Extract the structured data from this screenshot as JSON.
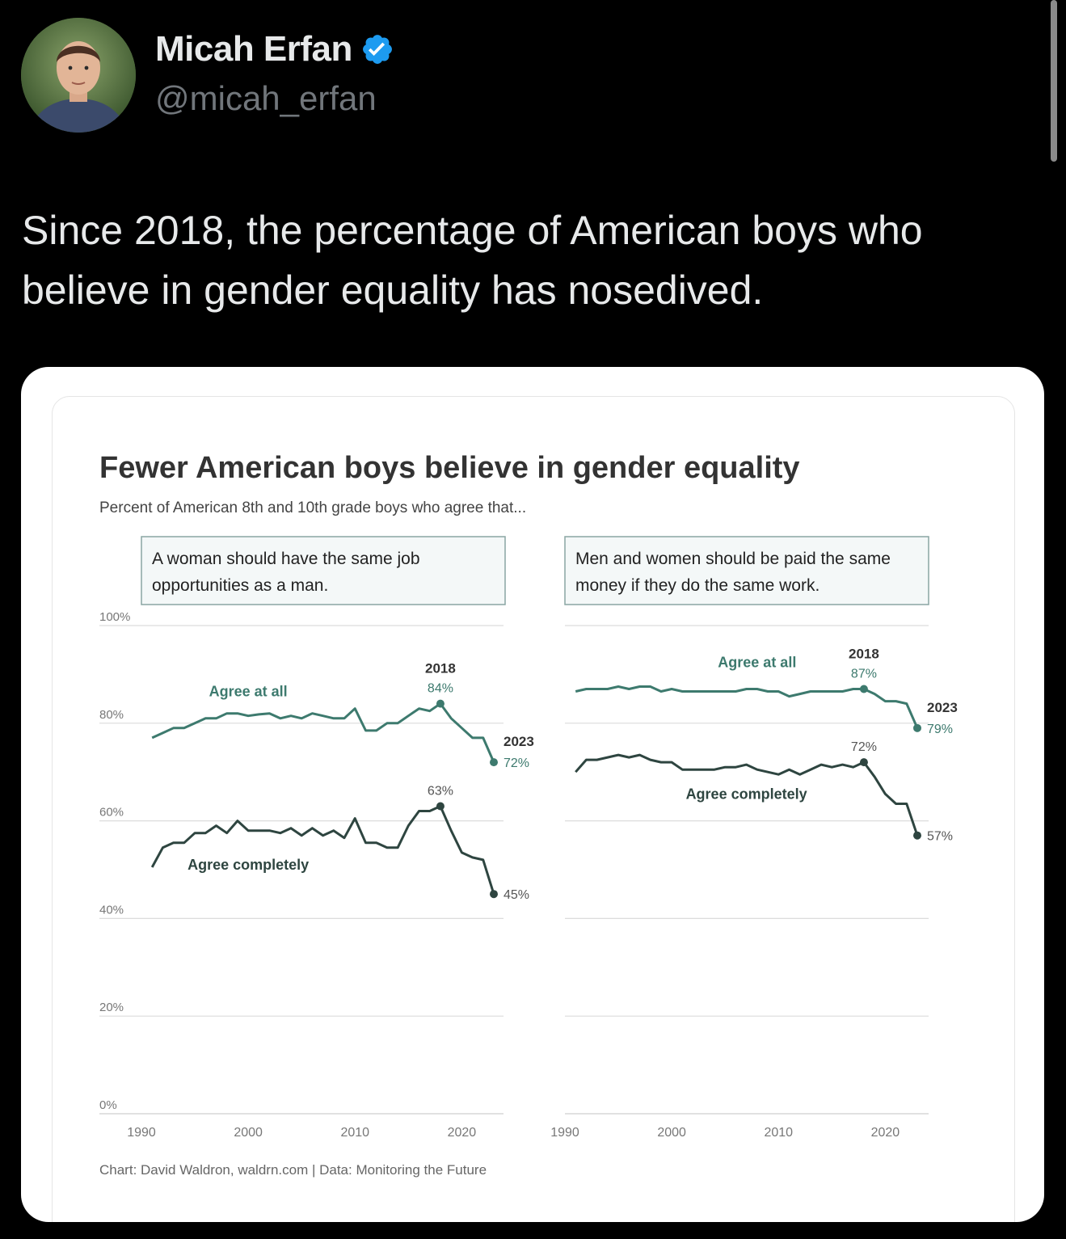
{
  "author": {
    "name": "Micah Erfan",
    "handle": "@micah_erfan",
    "verified_icon": "verified-badge-icon",
    "verified_color": "#1d9bf0"
  },
  "tweet": {
    "text": "Since 2018, the percentage of American boys who believe in gender equality has nosedived."
  },
  "chart_data": {
    "type": "line",
    "title": "Fewer American boys believe in gender equality",
    "subtitle": "Percent of American 8th and 10th grade boys who agree that...",
    "source": "Chart: David Waldron, waldrn.com | Data: Monitoring the Future",
    "ylim": [
      0,
      100
    ],
    "y_ticks": [
      "100%",
      "80%",
      "60%",
      "40%",
      "20%",
      "0%"
    ],
    "xlim": [
      1990,
      2023
    ],
    "x_ticks": [
      "1990",
      "2000",
      "2010",
      "2020"
    ],
    "colors": {
      "agree_at_all": "#3d7a6e",
      "agree_completely": "#2e4540"
    },
    "panels": [
      {
        "question": "A woman should have the same job opportunities as a man.",
        "series": [
          {
            "name": "Agree at all",
            "x": [
              1991,
              1992,
              1993,
              1994,
              1995,
              1996,
              1997,
              1998,
              1999,
              2000,
              2001,
              2002,
              2003,
              2004,
              2005,
              2006,
              2007,
              2008,
              2009,
              2010,
              2011,
              2012,
              2013,
              2014,
              2015,
              2016,
              2017,
              2018,
              2019,
              2020,
              2021,
              2022,
              2023
            ],
            "y": [
              77,
              78,
              79,
              79,
              80,
              81,
              81,
              82,
              82,
              81.5,
              81.8,
              82,
              81,
              81.5,
              81,
              82,
              81.5,
              81,
              81,
              83,
              78.5,
              78.5,
              80,
              80,
              81.5,
              83,
              82.5,
              84,
              81,
              79,
              77,
              77,
              72
            ]
          },
          {
            "name": "Agree completely",
            "x": [
              1991,
              1992,
              1993,
              1994,
              1995,
              1996,
              1997,
              1998,
              1999,
              2000,
              2001,
              2002,
              2003,
              2004,
              2005,
              2006,
              2007,
              2008,
              2009,
              2010,
              2011,
              2012,
              2013,
              2014,
              2015,
              2016,
              2017,
              2018,
              2019,
              2020,
              2021,
              2022,
              2023
            ],
            "y": [
              50.5,
              54.5,
              55.5,
              55.5,
              57.5,
              57.5,
              59,
              57.5,
              60,
              58,
              58,
              58,
              57.5,
              58.5,
              57,
              58.5,
              57,
              58,
              56.5,
              60.5,
              55.5,
              55.5,
              54.5,
              54.5,
              59,
              62,
              62,
              63,
              58,
              53.5,
              52.5,
              52,
              45
            ]
          }
        ],
        "labels": {
          "agree_at_all": "Agree at all",
          "agree_completely": "Agree completely",
          "peak_year": "2018",
          "peak_at_all": "84%",
          "peak_completely": "63%",
          "end_year": "2023",
          "end_at_all": "72%",
          "end_completely": "45%"
        }
      },
      {
        "question": "Men and women should be paid the same money if they do the same work.",
        "series": [
          {
            "name": "Agree at all",
            "x": [
              1991,
              1992,
              1993,
              1994,
              1995,
              1996,
              1997,
              1998,
              1999,
              2000,
              2001,
              2002,
              2003,
              2004,
              2005,
              2006,
              2007,
              2008,
              2009,
              2010,
              2011,
              2012,
              2013,
              2014,
              2015,
              2016,
              2017,
              2018,
              2019,
              2020,
              2021,
              2022,
              2023
            ],
            "y": [
              86.5,
              87,
              87,
              87,
              87.5,
              87,
              87.5,
              87.5,
              86.5,
              87,
              86.5,
              86.5,
              86.5,
              86.5,
              86.5,
              86.5,
              87,
              87,
              86.5,
              86.5,
              85.5,
              86,
              86.5,
              86.5,
              86.5,
              86.5,
              87,
              87,
              86,
              84.5,
              84.5,
              84,
              79
            ]
          },
          {
            "name": "Agree completely",
            "x": [
              1991,
              1992,
              1993,
              1994,
              1995,
              1996,
              1997,
              1998,
              1999,
              2000,
              2001,
              2002,
              2003,
              2004,
              2005,
              2006,
              2007,
              2008,
              2009,
              2010,
              2011,
              2012,
              2013,
              2014,
              2015,
              2016,
              2017,
              2018,
              2019,
              2020,
              2021,
              2022,
              2023
            ],
            "y": [
              70,
              72.5,
              72.5,
              73,
              73.5,
              73,
              73.5,
              72.5,
              72,
              72,
              70.5,
              70.5,
              70.5,
              70.5,
              71,
              71,
              71.5,
              70.5,
              70,
              69.5,
              70.5,
              69.5,
              70.5,
              71.5,
              71,
              71.5,
              71,
              72,
              69,
              65.5,
              63.5,
              63.5,
              57
            ]
          }
        ],
        "labels": {
          "agree_at_all": "Agree at all",
          "agree_completely": "Agree completely",
          "peak_year": "2018",
          "peak_at_all": "87%",
          "peak_completely": "72%",
          "end_year": "2023",
          "end_at_all": "79%",
          "end_completely": "57%"
        }
      }
    ]
  }
}
